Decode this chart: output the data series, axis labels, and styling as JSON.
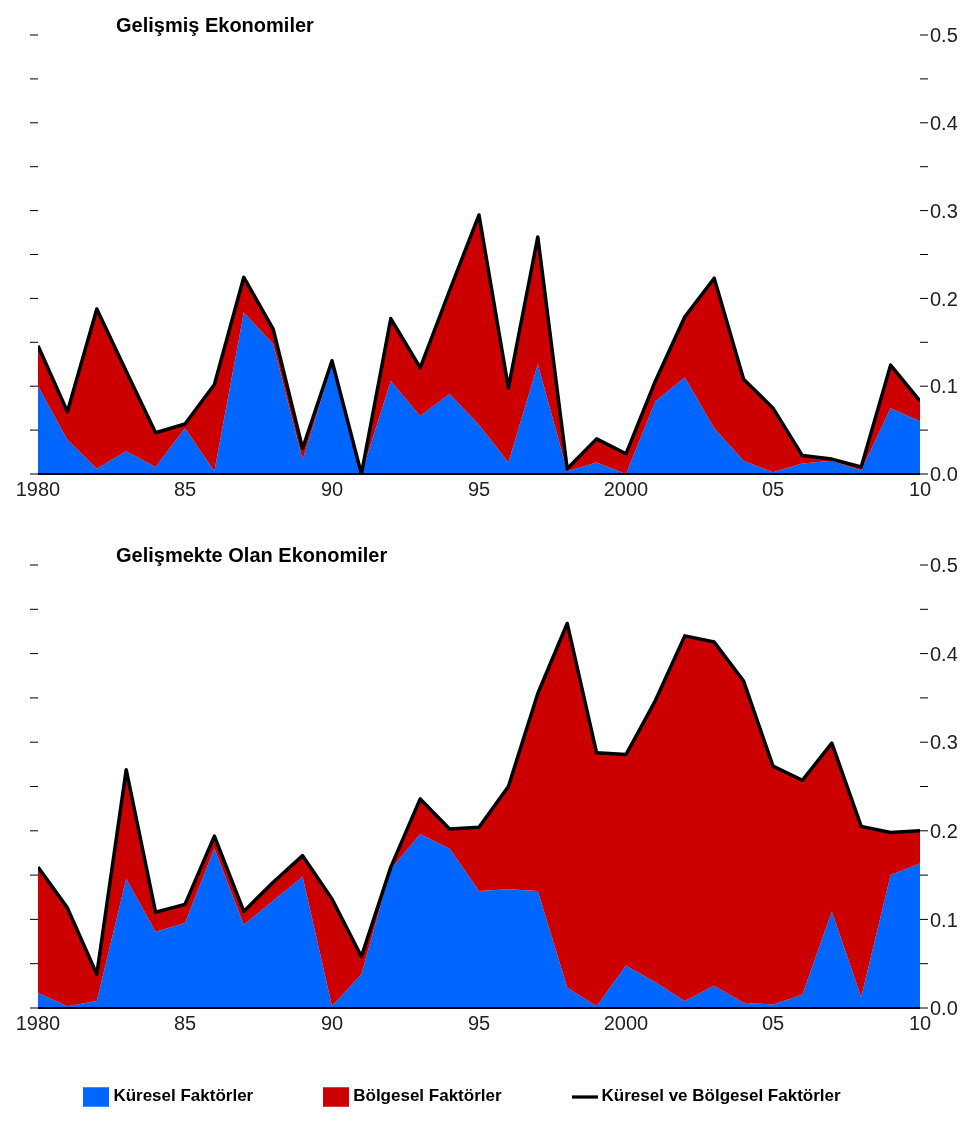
{
  "chart_data": [
    {
      "type": "area",
      "title": "Gelişmiş Ekonomiler",
      "stacked": true,
      "x": [
        1980,
        1981,
        1982,
        1983,
        1984,
        1985,
        1986,
        1987,
        1988,
        1989,
        1990,
        1991,
        1992,
        1993,
        1994,
        1995,
        1996,
        1997,
        1998,
        1999,
        2000,
        2001,
        2002,
        2003,
        2004,
        2005,
        2006,
        2007,
        2008,
        2009,
        2010
      ],
      "series": [
        {
          "color": "#0066ff",
          "values": [
            0.1,
            0.039,
            0.006,
            0.026,
            0.008,
            0.052,
            0.003,
            0.184,
            0.148,
            0.016,
            0.125,
            0.0,
            0.106,
            0.066,
            0.091,
            0.056,
            0.013,
            0.125,
            0.003,
            0.013,
            0.0,
            0.083,
            0.11,
            0.052,
            0.015,
            0.002,
            0.012,
            0.015,
            0.004,
            0.075,
            0.06
          ]
        },
        {
          "color": "#cc0000",
          "values": [
            0.046,
            0.032,
            0.182,
            0.091,
            0.039,
            0.005,
            0.099,
            0.04,
            0.017,
            0.013,
            0.004,
            0.0,
            0.071,
            0.055,
            0.118,
            0.239,
            0.085,
            0.145,
            0.003,
            0.027,
            0.023,
            0.023,
            0.069,
            0.171,
            0.093,
            0.073,
            0.009,
            0.002,
            0.004,
            0.049,
            0.023
          ]
        },
        {
          "type": "line",
          "color": "#000000",
          "values": [
            null,
            null,
            null,
            null,
            null,
            null,
            null,
            null,
            null,
            null,
            null,
            null,
            null,
            null,
            null,
            null,
            null,
            null,
            null,
            null,
            null,
            null,
            null,
            null,
            null,
            null,
            null,
            null,
            null,
            null,
            null
          ]
        }
      ],
      "xlim": [
        1980,
        2010
      ],
      "xticks": [
        {
          "value": 1980,
          "label": "1980"
        },
        {
          "value": 1985,
          "label": "85"
        },
        {
          "value": 1990,
          "label": "90"
        },
        {
          "value": 1995,
          "label": "95"
        },
        {
          "value": 2000,
          "label": "2000"
        },
        {
          "value": 2005,
          "label": "05"
        },
        {
          "value": 2010,
          "label": "10"
        }
      ],
      "ylim": [
        0,
        0.5
      ],
      "yticks": [
        {
          "value": 0,
          "label": "0.0"
        },
        {
          "value": 0.05,
          "label": null
        },
        0.1,
        {
          "value": 0.15,
          "label": null
        },
        0.2,
        {
          "value": 0.25,
          "label": null
        },
        0.3,
        {
          "value": 0.35,
          "label": null
        },
        0.4,
        {
          "value": 0.45,
          "label": null
        },
        0.5
      ]
    },
    {
      "type": "area",
      "title": "Gelişmekte Olan Ekonomiler",
      "stacked": true,
      "legend": "bottom",
      "x": [
        1980,
        1981,
        1982,
        1983,
        1984,
        1985,
        1986,
        1987,
        1988,
        1989,
        1990,
        1991,
        1992,
        1993,
        1994,
        1995,
        1996,
        1997,
        1998,
        1999,
        2000,
        2001,
        2002,
        2003,
        2004,
        2005,
        2006,
        2007,
        2008,
        2009,
        2010
      ],
      "series": [
        {
          "name": "Küresel Faktörler",
          "color": "#0066ff",
          "values": [
            0.017,
            0.002,
            0.008,
            0.146,
            0.086,
            0.096,
            0.18,
            0.094,
            0.121,
            0.148,
            0.002,
            0.038,
            0.157,
            0.196,
            0.18,
            0.132,
            0.134,
            0.132,
            0.023,
            0.002,
            0.048,
            0.029,
            0.008,
            0.025,
            0.006,
            0.004,
            0.015,
            0.109,
            0.012,
            0.15,
            0.163
          ]
        },
        {
          "name": "Bölgesel Faktörler",
          "color": "#cc0000",
          "values": [
            0.142,
            0.111,
            0.03,
            0.123,
            0.022,
            0.021,
            0.014,
            0.015,
            0.021,
            0.024,
            0.121,
            0.02,
            0.002,
            0.04,
            0.022,
            0.072,
            0.116,
            0.223,
            0.411,
            0.286,
            0.238,
            0.318,
            0.412,
            0.388,
            0.363,
            0.269,
            0.242,
            0.19,
            0.193,
            0.048,
            0.037
          ]
        },
        {
          "name": "Küresel ve Bölgesel Faktörler",
          "type": "line",
          "color": "#000000",
          "values": [
            null,
            null,
            null,
            null,
            null,
            null,
            null,
            null,
            null,
            null,
            null,
            null,
            null,
            null,
            null,
            null,
            null,
            null,
            null,
            null,
            null,
            null,
            null,
            null,
            null,
            null,
            null,
            null,
            null,
            null,
            null
          ]
        }
      ],
      "xlim": [
        1980,
        2010
      ],
      "xticks": [
        {
          "value": 1980,
          "label": "1980"
        },
        {
          "value": 1985,
          "label": "85"
        },
        {
          "value": 1990,
          "label": "90"
        },
        {
          "value": 1995,
          "label": "95"
        },
        {
          "value": 2000,
          "label": "2000"
        },
        {
          "value": 2005,
          "label": "05"
        },
        {
          "value": 2010,
          "label": "10"
        }
      ],
      "ylim": [
        0,
        0.5
      ],
      "yticks": [
        {
          "value": 0,
          "label": "0.0"
        },
        {
          "value": 0.05,
          "label": null
        },
        0.1,
        {
          "value": 0.15,
          "label": null
        },
        0.2,
        {
          "value": 0.25,
          "label": null
        },
        0.3,
        {
          "value": 0.35,
          "label": null
        },
        0.4,
        {
          "value": 0.45,
          "label": null
        },
        0.5
      ]
    }
  ]
}
